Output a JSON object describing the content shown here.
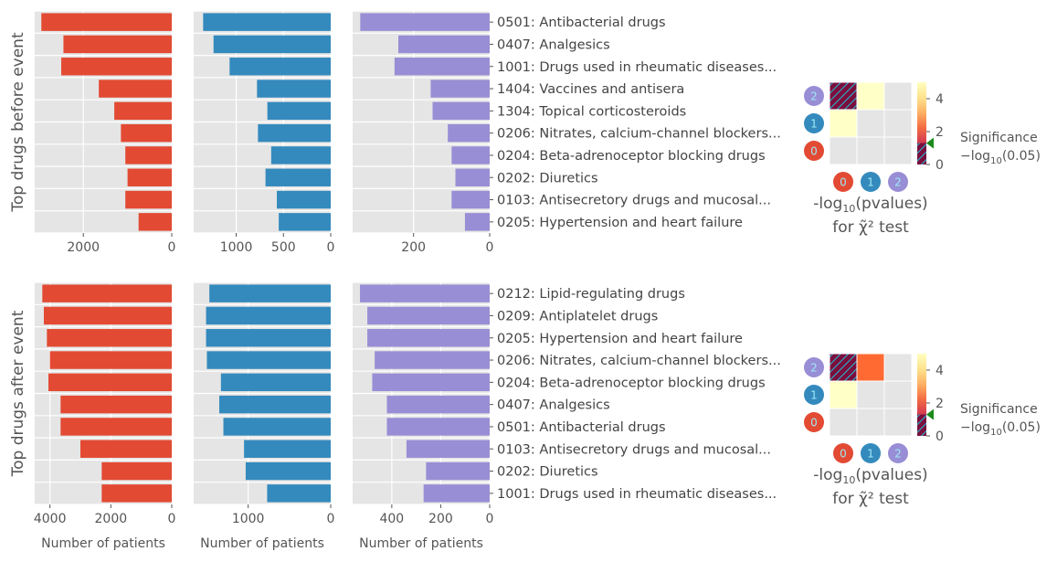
{
  "chart_data": [
    {
      "type": "bar",
      "orientation": "horizontal",
      "row": "before",
      "ylabel": "Top drugs before event",
      "categories": [
        "0501: Antibacterial drugs",
        "0407: Analgesics",
        "1001: Drugs used in rheumatic diseases...",
        "1404: Vaccines and antisera",
        "1304: Topical corticosteroids",
        "0206: Nitrates, calcium-channel blockers...",
        "0204: Beta-adrenoceptor blocking drugs",
        "0202: Diuretics",
        "0103: Antisecretory drugs and mucosal...",
        "0205: Hypertension and heart failure"
      ],
      "panels": [
        {
          "group": "0",
          "color": "#E24A33",
          "xlim": [
            3100,
            0
          ],
          "ticks": [
            2000,
            0
          ],
          "xlabel": "",
          "values": [
            2950,
            2450,
            2500,
            1650,
            1300,
            1150,
            1050,
            1000,
            1050,
            750
          ]
        },
        {
          "group": "1",
          "color": "#348ABD",
          "xlim": [
            1450,
            0
          ],
          "ticks": [
            1000,
            500,
            0
          ],
          "xlabel": "",
          "values": [
            1350,
            1240,
            1070,
            780,
            670,
            770,
            630,
            690,
            570,
            550
          ]
        },
        {
          "group": "2",
          "color": "#988ED5",
          "xlim": [
            360,
            0
          ],
          "ticks": [
            200,
            0
          ],
          "xlabel": "",
          "values": [
            340,
            240,
            250,
            155,
            150,
            110,
            100,
            90,
            100,
            65
          ]
        }
      ],
      "heatmap": {
        "title_line1": "-log",
        "title_sub": "10",
        "title_line1_end": "(pvalues)",
        "title_line2": "for χ̃² test",
        "row_labels": [
          "2",
          "1",
          "0"
        ],
        "col_labels": [
          "0",
          "1",
          "2"
        ],
        "cells": [
          [
            "hatched",
            "0.2",
            "none"
          ],
          [
            "0.2",
            "none",
            "none"
          ],
          [
            "none",
            "none",
            "none"
          ]
        ],
        "colorbar_ticks": [
          "4",
          "2",
          "0"
        ],
        "colorbar_range": [
          0,
          5
        ],
        "threshold": 1.3,
        "significance_label": "Significance",
        "significance_formula": "−log",
        "significance_sub": "10",
        "significance_end": "(0.05)"
      }
    },
    {
      "type": "bar",
      "orientation": "horizontal",
      "row": "after",
      "ylabel": "Top drugs after event",
      "categories": [
        "0212: Lipid-regulating drugs",
        "0209: Antiplatelet drugs",
        "0205: Hypertension and heart failure",
        "0206: Nitrates, calcium-channel blockers...",
        "0204: Beta-adrenoceptor blocking drugs",
        "0407: Analgesics",
        "0501: Antibacterial drugs",
        "0103: Antisecretory drugs and mucosal...",
        "0202: Diuretics",
        "1001: Drugs used in rheumatic diseases..."
      ],
      "panels": [
        {
          "group": "0",
          "color": "#E24A33",
          "xlim": [
            4500,
            0
          ],
          "ticks": [
            4000,
            2000,
            0
          ],
          "xlabel": "Number of patients",
          "values": [
            4250,
            4200,
            4100,
            4000,
            4050,
            3650,
            3650,
            3000,
            2300,
            2300
          ]
        },
        {
          "group": "1",
          "color": "#348ABD",
          "xlim": [
            1660,
            0
          ],
          "ticks": [
            1000,
            0
          ],
          "xlabel": "Number of patients",
          "values": [
            1470,
            1510,
            1510,
            1500,
            1330,
            1350,
            1300,
            1050,
            1030,
            770
          ]
        },
        {
          "group": "2",
          "color": "#988ED5",
          "xlim": [
            560,
            0
          ],
          "ticks": [
            400,
            200,
            0
          ],
          "xlabel": "Number of patients",
          "values": [
            530,
            500,
            500,
            470,
            480,
            420,
            420,
            340,
            260,
            270
          ]
        }
      ],
      "heatmap": {
        "title_line1": "-log",
        "title_sub": "10",
        "title_line1_end": "(pvalues)",
        "title_line2": "for χ̃² test",
        "row_labels": [
          "2",
          "1",
          "0"
        ],
        "col_labels": [
          "0",
          "1",
          "2"
        ],
        "cells": [
          [
            "hatched",
            "3.4",
            "none"
          ],
          [
            "0.2",
            "none",
            "none"
          ],
          [
            "none",
            "none",
            "none"
          ]
        ],
        "colorbar_ticks": [
          "4",
          "2",
          "0"
        ],
        "colorbar_range": [
          0,
          5
        ],
        "threshold": 1.3,
        "significance_label": "Significance",
        "significance_formula": "−log",
        "significance_sub": "10",
        "significance_end": "(0.05)"
      }
    }
  ],
  "group_colors": {
    "0": "#E24A33",
    "1": "#348ABD",
    "2": "#988ED5"
  },
  "grid": true,
  "legend": "none"
}
